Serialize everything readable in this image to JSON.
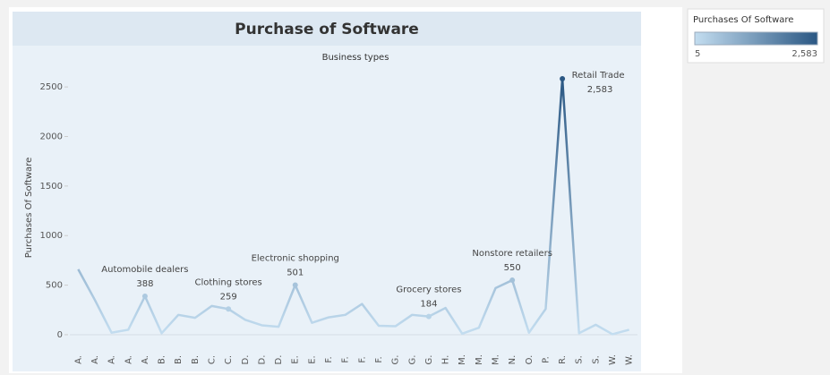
{
  "chart_data": {
    "type": "line",
    "title": "Purchase of Software",
    "subtitle": "Business types",
    "y_label": "Purchases Of Software",
    "categories": [
      "A.",
      "A.",
      "A.",
      "A.",
      "A.",
      "B.",
      "B.",
      "B.",
      "C.",
      "C.",
      "D.",
      "D.",
      "D.",
      "E.",
      "E.",
      "F.",
      "F.",
      "F.",
      "F.",
      "G.",
      "G.",
      "G.",
      "H.",
      "M.",
      "M.",
      "M.",
      "N.",
      "O.",
      "P.",
      "R.",
      "S.",
      "S.",
      "W.",
      "W."
    ],
    "values": [
      660,
      350,
      20,
      50,
      388,
      15,
      200,
      170,
      290,
      259,
      150,
      95,
      80,
      501,
      120,
      175,
      200,
      310,
      90,
      85,
      200,
      184,
      270,
      10,
      70,
      470,
      550,
      20,
      260,
      2583,
      15,
      100,
      5,
      50
    ],
    "point_names": [
      null,
      null,
      null,
      null,
      "Automobile dealers",
      null,
      null,
      null,
      null,
      "Clothing stores",
      null,
      null,
      null,
      "Electronic shopping",
      null,
      null,
      null,
      null,
      null,
      null,
      null,
      "Grocery stores",
      null,
      null,
      null,
      null,
      "Nonstore retailers",
      null,
      null,
      "Retail Trade",
      null,
      null,
      null,
      null
    ],
    "value_labels": [
      null,
      null,
      null,
      null,
      "388",
      null,
      null,
      null,
      null,
      "259",
      null,
      null,
      null,
      "501",
      null,
      null,
      null,
      null,
      null,
      null,
      null,
      "184",
      null,
      null,
      null,
      null,
      "550",
      null,
      null,
      "2,583",
      null,
      null,
      null,
      null
    ],
    "ylim": [
      -190,
      2700
    ],
    "yticks": [
      0,
      500,
      1000,
      1500,
      2000,
      2500
    ],
    "zero_line": true,
    "color_legend": {
      "title": "Purchases Of Software",
      "min": 5,
      "max": {
        "value": 2583,
        "label": "2,583"
      },
      "colors": [
        "#c3ddf0",
        "#2a5783"
      ]
    }
  }
}
